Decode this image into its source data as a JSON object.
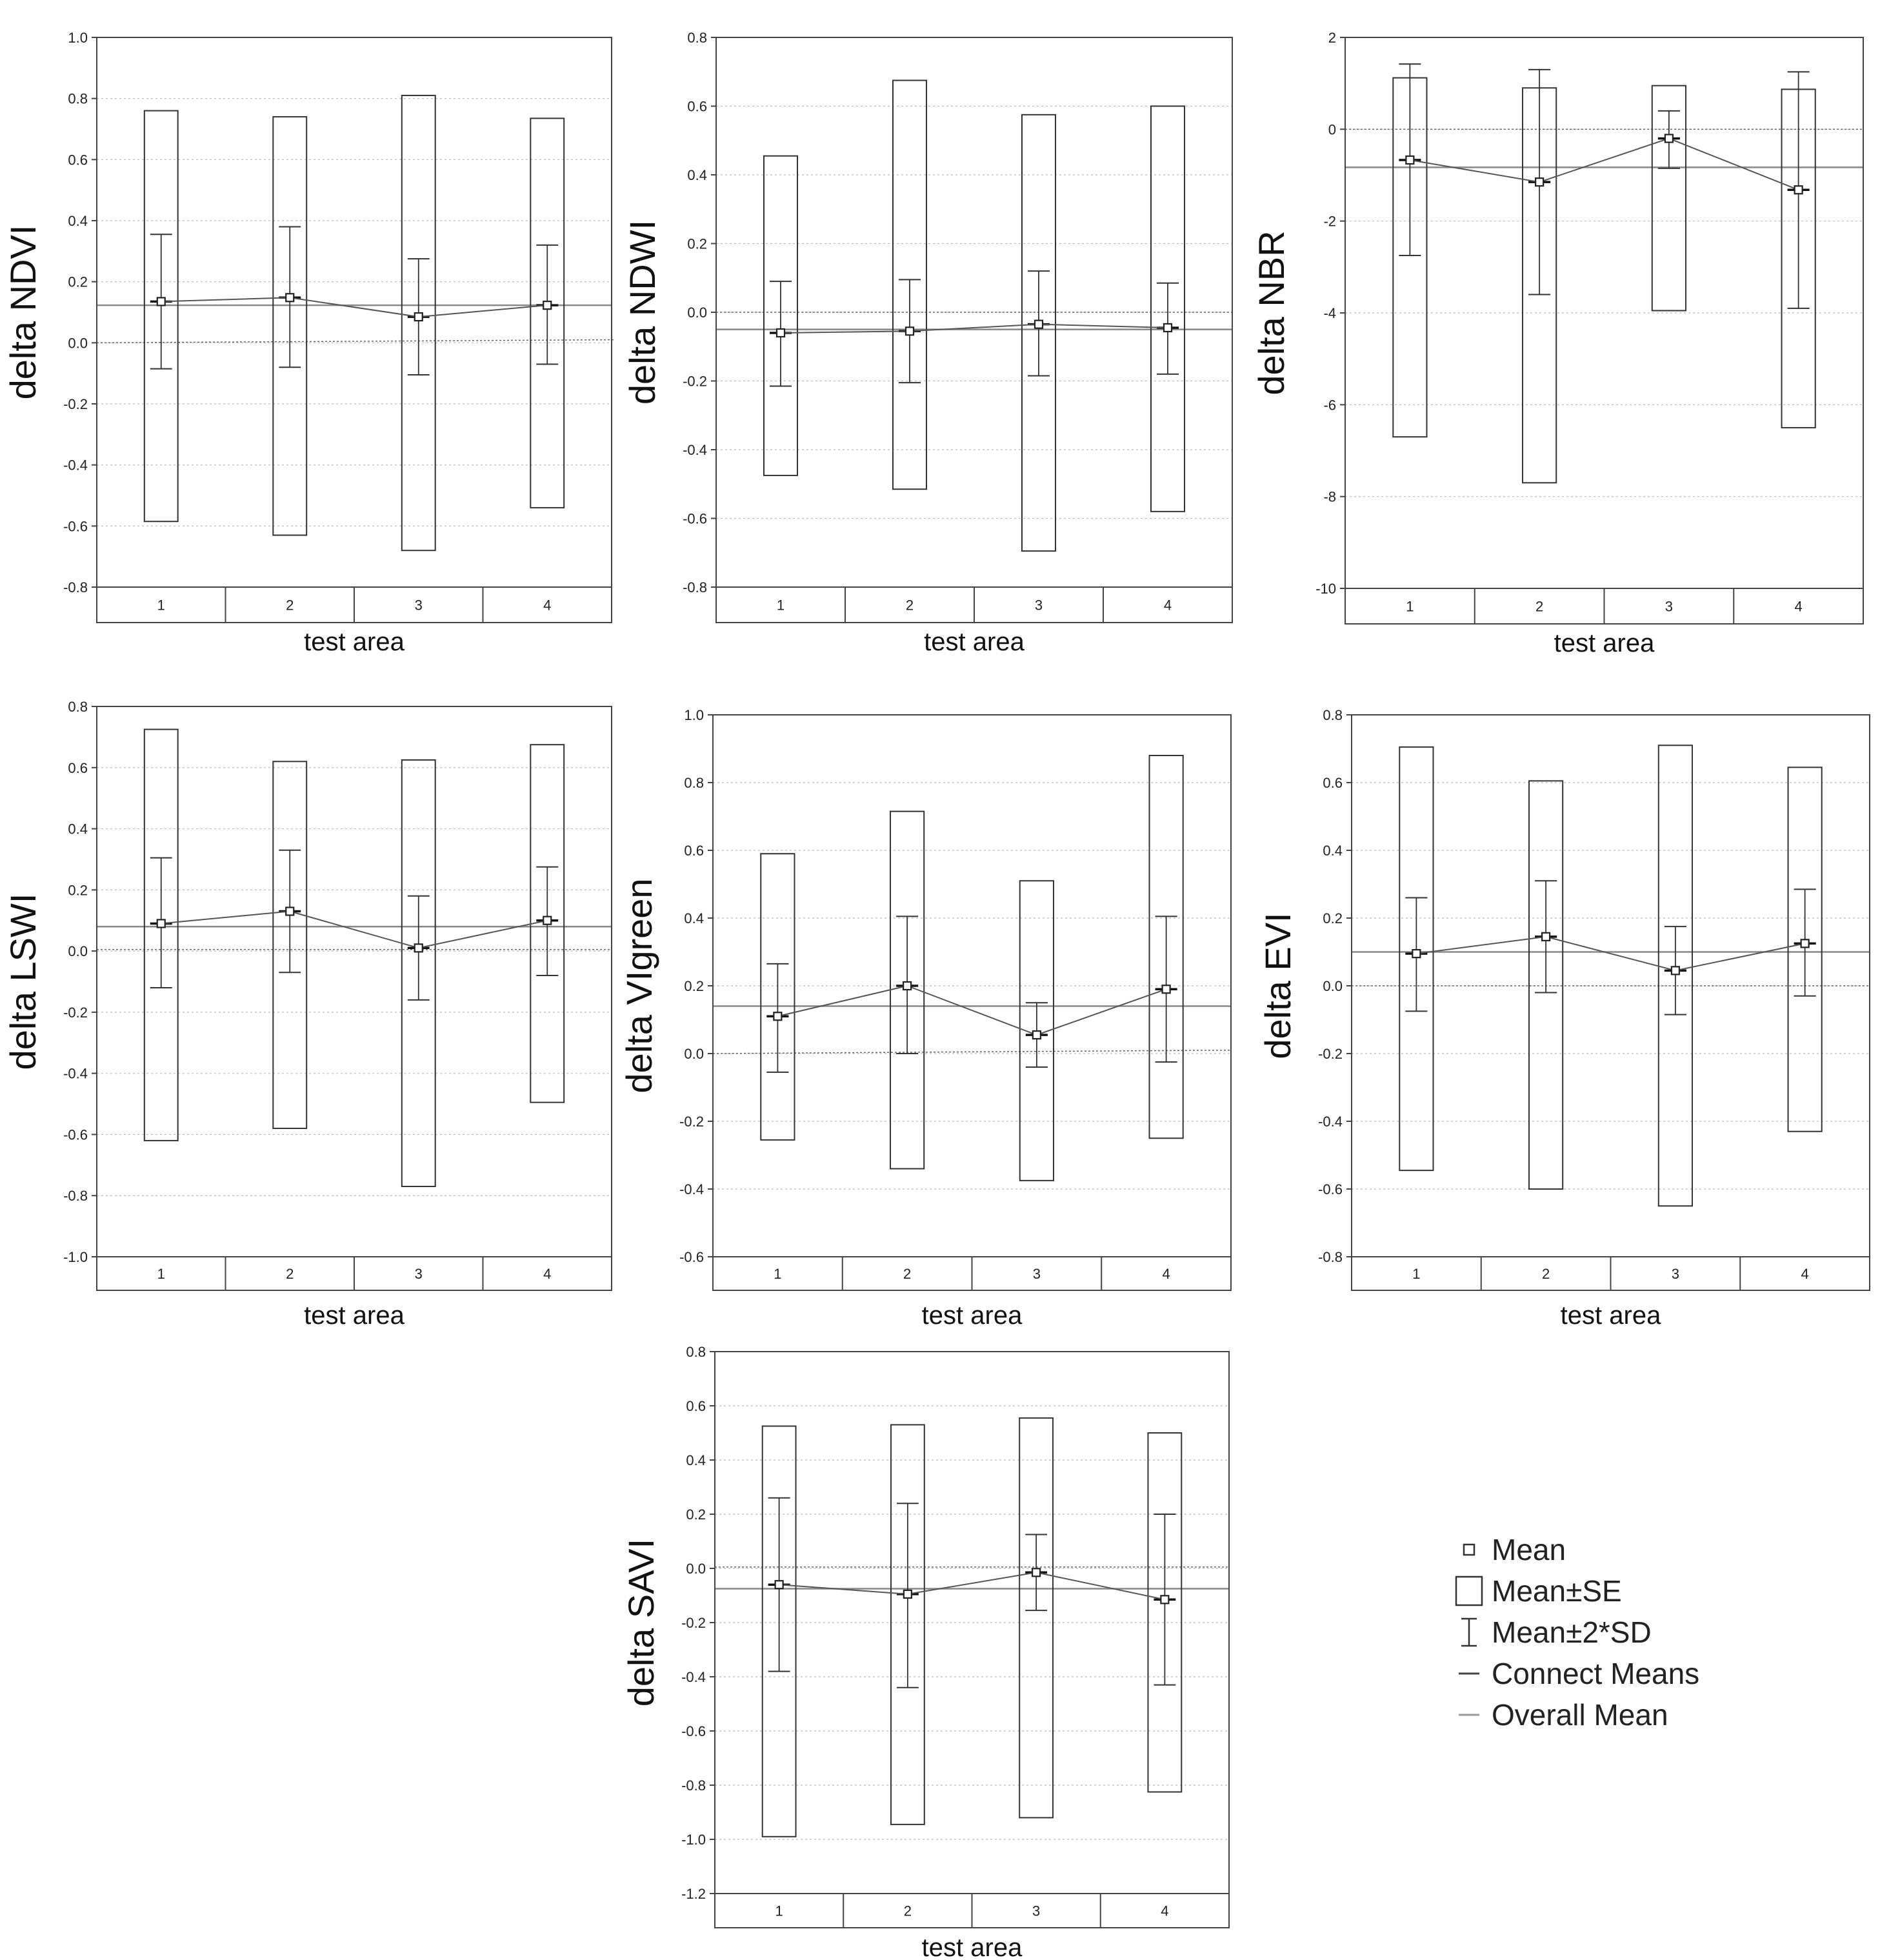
{
  "chart_data": [
    {
      "type": "box",
      "ylabel": "delta NDVI",
      "xlabel": "test area",
      "categories": [
        "1",
        "2",
        "3",
        "4"
      ],
      "ylim": [
        -0.8,
        1.0
      ],
      "yticks": [
        1.0,
        0.8,
        0.6,
        0.4,
        0.2,
        0.0,
        -0.2,
        -0.4,
        -0.6,
        -0.8
      ],
      "yticks_labels": [
        "1.0",
        "0.8",
        "0.6",
        "0.4",
        "0.2",
        "0.0",
        "-0.2",
        "-0.4",
        "-0.6",
        "-0.8"
      ],
      "overall_mean": 0.123,
      "zero_line": [
        0.0,
        0.01
      ],
      "series": [
        {
          "name": "Mean",
          "values": [
            0.135,
            0.148,
            0.085,
            0.123
          ]
        },
        {
          "name": "Mean±SE",
          "low": [
            -0.585,
            -0.63,
            -0.68,
            -0.54
          ],
          "high": [
            0.76,
            0.74,
            0.81,
            0.735
          ]
        },
        {
          "name": "Mean±2*SD",
          "low": [
            -0.085,
            -0.08,
            -0.105,
            -0.07
          ],
          "high": [
            0.355,
            0.38,
            0.275,
            0.32
          ]
        }
      ]
    },
    {
      "type": "box",
      "ylabel": "delta NDWI",
      "xlabel": "test area",
      "categories": [
        "1",
        "2",
        "3",
        "4"
      ],
      "ylim": [
        -0.8,
        0.8
      ],
      "yticks": [
        0.8,
        0.6,
        0.4,
        0.2,
        0.0,
        -0.2,
        -0.4,
        -0.6,
        -0.8
      ],
      "yticks_labels": [
        "0.8",
        "0.6",
        "0.4",
        "0.2",
        "0.0",
        "-0.2",
        "-0.4",
        "-0.6",
        "-0.8"
      ],
      "overall_mean": -0.05,
      "zero_line": [
        0.0,
        0.0
      ],
      "series": [
        {
          "name": "Mean",
          "values": [
            -0.06,
            -0.055,
            -0.035,
            -0.045
          ]
        },
        {
          "name": "Mean±SE",
          "low": [
            -0.475,
            -0.515,
            -0.695,
            -0.58
          ],
          "high": [
            0.455,
            0.675,
            0.575,
            0.6
          ]
        },
        {
          "name": "Mean±2*SD",
          "low": [
            -0.215,
            -0.205,
            -0.185,
            -0.18
          ],
          "high": [
            0.09,
            0.095,
            0.12,
            0.085
          ]
        }
      ]
    },
    {
      "type": "box",
      "ylabel": "delta NBR",
      "xlabel": "test area",
      "categories": [
        "1",
        "2",
        "3",
        "4"
      ],
      "ylim": [
        -10,
        2
      ],
      "yticks": [
        2,
        0,
        -2,
        -4,
        -6,
        -8,
        -10
      ],
      "yticks_labels": [
        "2",
        "0",
        "-2",
        "-4",
        "-6",
        "-8",
        "-10"
      ],
      "overall_mean": -0.83,
      "zero_line": [
        0.0,
        0.0
      ],
      "series": [
        {
          "name": "Mean",
          "values": [
            -0.67,
            -1.15,
            -0.2,
            -1.32
          ]
        },
        {
          "name": "Mean±SE",
          "low": [
            -6.7,
            -7.7,
            -3.95,
            -6.5
          ],
          "high": [
            1.12,
            0.9,
            0.95,
            0.87
          ]
        },
        {
          "name": "Mean±2*SD",
          "low": [
            -2.75,
            -3.6,
            -0.85,
            -3.9
          ],
          "high": [
            1.42,
            1.3,
            0.4,
            1.25
          ]
        }
      ]
    },
    {
      "type": "box",
      "ylabel": "delta LSWI",
      "xlabel": "test area",
      "categories": [
        "1",
        "2",
        "3",
        "4"
      ],
      "ylim": [
        -1.0,
        0.8
      ],
      "yticks": [
        0.8,
        0.6,
        0.4,
        0.2,
        0.0,
        -0.2,
        -0.4,
        -0.6,
        -0.8,
        -1.0
      ],
      "yticks_labels": [
        "0.8",
        "0.6",
        "0.4",
        "0.2",
        "0.0",
        "-0.2",
        "-0.4",
        "-0.6",
        "-0.8",
        "-1.0"
      ],
      "overall_mean": 0.08,
      "zero_line": [
        0.005,
        0.005
      ],
      "series": [
        {
          "name": "Mean",
          "values": [
            0.09,
            0.13,
            0.01,
            0.1
          ]
        },
        {
          "name": "Mean±SE",
          "low": [
            -0.62,
            -0.58,
            -0.77,
            -0.495
          ],
          "high": [
            0.725,
            0.62,
            0.625,
            0.675
          ]
        },
        {
          "name": "Mean±2*SD",
          "low": [
            -0.12,
            -0.07,
            -0.16,
            -0.08
          ],
          "high": [
            0.305,
            0.33,
            0.18,
            0.275
          ]
        }
      ]
    },
    {
      "type": "box",
      "ylabel": "delta VIgreen",
      "xlabel": "test area",
      "categories": [
        "1",
        "2",
        "3",
        "4"
      ],
      "ylim": [
        -0.6,
        1.0
      ],
      "yticks": [
        1.0,
        0.8,
        0.6,
        0.4,
        0.2,
        0.0,
        -0.2,
        -0.4,
        -0.6
      ],
      "yticks_labels": [
        "1.0",
        "0.8",
        "0.6",
        "0.4",
        "0.2",
        "0.0",
        "-0.2",
        "-0.4",
        "-0.6"
      ],
      "overall_mean": 0.14,
      "zero_line": [
        0.0,
        0.01
      ],
      "series": [
        {
          "name": "Mean",
          "values": [
            0.11,
            0.2,
            0.055,
            0.19
          ]
        },
        {
          "name": "Mean±SE",
          "low": [
            -0.255,
            -0.34,
            -0.375,
            -0.25
          ],
          "high": [
            0.59,
            0.715,
            0.51,
            0.88
          ]
        },
        {
          "name": "Mean±2*SD",
          "low": [
            -0.055,
            0.0,
            -0.04,
            -0.025
          ],
          "high": [
            0.265,
            0.405,
            0.15,
            0.405
          ]
        }
      ]
    },
    {
      "type": "box",
      "ylabel": "delta EVI",
      "xlabel": "test area",
      "categories": [
        "1",
        "2",
        "3",
        "4"
      ],
      "ylim": [
        -0.8,
        0.8
      ],
      "yticks": [
        0.8,
        0.6,
        0.4,
        0.2,
        0.0,
        -0.2,
        -0.4,
        -0.6,
        -0.8
      ],
      "yticks_labels": [
        "0.8",
        "0.6",
        "0.4",
        "0.2",
        "0.0",
        "-0.2",
        "-0.4",
        "-0.6",
        "-0.8"
      ],
      "overall_mean": 0.1,
      "zero_line": [
        0.0,
        0.0
      ],
      "series": [
        {
          "name": "Mean",
          "values": [
            0.095,
            0.145,
            0.045,
            0.125
          ]
        },
        {
          "name": "Mean±SE",
          "low": [
            -0.545,
            -0.6,
            -0.65,
            -0.43
          ],
          "high": [
            0.705,
            0.605,
            0.71,
            0.645
          ]
        },
        {
          "name": "Mean±2*SD",
          "low": [
            -0.075,
            -0.02,
            -0.085,
            -0.03
          ],
          "high": [
            0.26,
            0.31,
            0.175,
            0.285
          ]
        }
      ]
    },
    {
      "type": "box",
      "ylabel": "delta SAVI",
      "xlabel": "test area",
      "categories": [
        "1",
        "2",
        "3",
        "4"
      ],
      "ylim": [
        -1.2,
        0.8
      ],
      "yticks": [
        0.8,
        0.6,
        0.4,
        0.2,
        0.0,
        -0.2,
        -0.4,
        -0.6,
        -0.8,
        -1.0,
        -1.2
      ],
      "yticks_labels": [
        "0.8",
        "0.6",
        "0.4",
        "0.2",
        "0.0",
        "-0.2",
        "-0.4",
        "-0.6",
        "-0.8",
        "-1.0",
        "-1.2"
      ],
      "overall_mean": -0.075,
      "zero_line": [
        0.005,
        0.005
      ],
      "series": [
        {
          "name": "Mean",
          "values": [
            -0.06,
            -0.095,
            -0.015,
            -0.115
          ]
        },
        {
          "name": "Mean±SE",
          "low": [
            -0.99,
            -0.945,
            -0.92,
            -0.825
          ],
          "high": [
            0.525,
            0.53,
            0.555,
            0.5
          ]
        },
        {
          "name": "Mean±2*SD",
          "low": [
            -0.38,
            -0.44,
            -0.155,
            -0.43
          ],
          "high": [
            0.26,
            0.24,
            0.125,
            0.2
          ]
        }
      ]
    }
  ],
  "legend": [
    {
      "icon": "mean-marker-icon",
      "label": "Mean"
    },
    {
      "icon": "se-box-icon",
      "label": "Mean±SE"
    },
    {
      "icon": "sd-whisker-icon",
      "label": "Mean±2*SD"
    },
    {
      "icon": "connect-line-icon",
      "label": "Connect Means"
    },
    {
      "icon": "overall-line-icon",
      "label": "Overall Mean"
    }
  ],
  "colors": {
    "axis": "#444444",
    "box": "#333333",
    "grid": "#bbbbbb",
    "overall": "#888888",
    "connect": "#555555"
  }
}
